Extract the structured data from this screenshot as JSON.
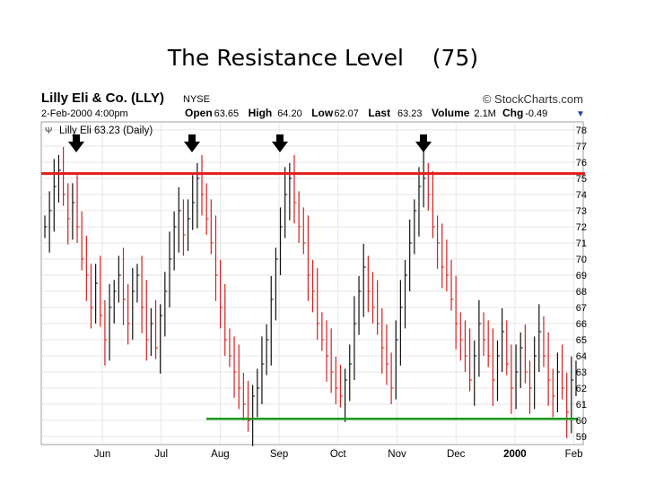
{
  "slide": {
    "title": "The Resistance Level    (75)"
  },
  "header": {
    "company": "Lilly Eli & Co. (LLY)",
    "exchange": "NYSE",
    "copyright": "© StockCharts.com",
    "date": "2-Feb-2000 4:00pm",
    "quote": [
      {
        "label": "Open",
        "value": "63.65"
      },
      {
        "label": "High",
        "value": "64.20"
      },
      {
        "label": "Low",
        "value": "62.07"
      },
      {
        "label": "Last",
        "value": "63.23"
      },
      {
        "label": "Volume",
        "value": "2.1M"
      },
      {
        "label": "Chg",
        "value": "-0.49"
      }
    ],
    "legend": "Lilly Eli 63.23 (Daily)"
  },
  "colors": {
    "resistance": "#e31b1b",
    "support": "#1a9a1a",
    "down_bar": "#d42020",
    "up_bar": "#111111",
    "grid": "#dcdcdc",
    "arrow": "#000000"
  },
  "chart_data": {
    "type": "ohlc",
    "title": "Lilly Eli & Co. (LLY)",
    "x_labels": [
      "Jun",
      "Jul",
      "Aug",
      "Sep",
      "Oct",
      "Nov",
      "Dec",
      "2000",
      "Feb"
    ],
    "y_ticks": [
      59,
      60,
      61,
      62,
      63,
      64,
      65,
      66,
      67,
      68,
      69,
      70,
      71,
      72,
      73,
      74,
      75,
      76,
      77,
      78
    ],
    "ylim": [
      58.5,
      78.5
    ],
    "grid": true,
    "resistance_level": 75.3,
    "support_level": 60.1,
    "arrows_at": [
      "late May",
      "mid Jul",
      "early Sep",
      "early Nov"
    ],
    "closes": [
      72,
      73,
      74.5,
      75.5,
      74,
      72.5,
      73.5,
      72,
      70,
      69,
      67,
      68.5,
      66.5,
      65,
      67,
      68,
      69,
      67.5,
      66,
      68,
      69,
      67,
      65,
      66,
      64.5,
      66.5,
      68,
      70,
      72,
      73,
      71.5,
      72.5,
      73.5,
      75,
      74,
      72.5,
      71,
      69,
      67,
      65,
      64,
      63,
      62,
      61,
      60,
      61.5,
      62,
      63.5,
      65,
      67.5,
      70,
      72,
      74,
      75,
      73.5,
      72,
      71,
      69,
      68,
      66,
      65,
      64,
      63,
      62,
      61.5,
      62.5,
      63.5,
      66,
      68,
      69.5,
      68,
      67,
      66,
      64.5,
      63.5,
      62,
      65,
      67,
      69,
      71,
      73,
      74.5,
      75,
      74,
      72,
      71,
      69.5,
      69,
      67.5,
      66,
      65,
      64,
      62.5,
      64,
      66,
      65,
      64,
      62.5,
      64,
      65.5,
      63.5,
      62,
      63,
      64.5,
      63,
      62,
      64,
      65.5,
      64,
      62.5,
      61.5,
      63,
      62,
      60.5,
      62.5,
      63
    ]
  }
}
